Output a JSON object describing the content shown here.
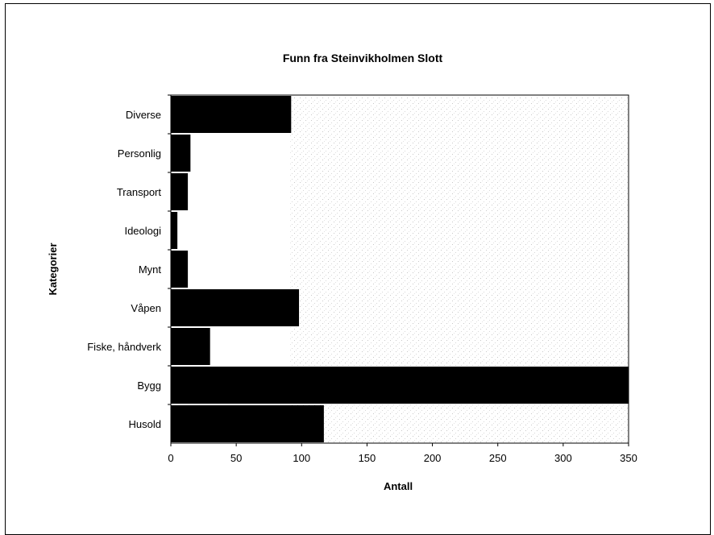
{
  "chart_data": {
    "type": "bar",
    "orientation": "horizontal",
    "title": "Funn fra Steinvikholmen Slott",
    "xlabel": "Antall",
    "ylabel": "Kategorier",
    "categories": [
      "Diverse",
      "Personlig",
      "Transport",
      "Ideologi",
      "Mynt",
      "Våpen",
      "Fiske, håndverk",
      "Bygg",
      "Husold"
    ],
    "values": [
      92,
      15,
      13,
      5,
      13,
      98,
      30,
      350,
      117
    ],
    "xlim": [
      0,
      350
    ],
    "xticks": [
      "0",
      "50",
      "100",
      "150",
      "200",
      "250",
      "300",
      "350"
    ],
    "grid": false,
    "legend": "none",
    "bar_color": "#000000"
  }
}
